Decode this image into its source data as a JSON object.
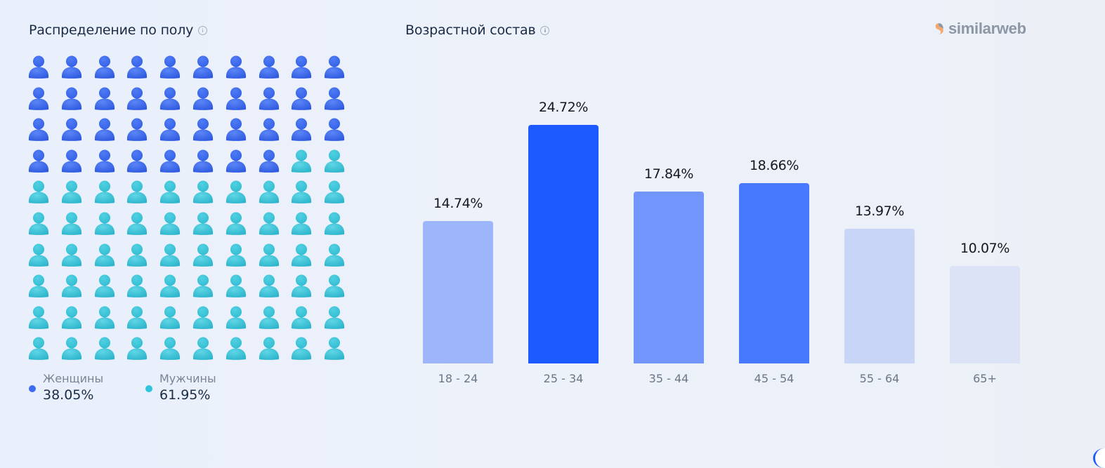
{
  "gender": {
    "title": "Распределение по полу",
    "info_icon": "info-icon",
    "women": {
      "label": "Женщины",
      "value": "38.05%",
      "icon_count": 38,
      "color": "#3d6cf0"
    },
    "men": {
      "label": "Мужчины",
      "value": "61.95%",
      "icon_count": 62,
      "color": "#2ec5dc"
    },
    "grid": {
      "rows": 10,
      "cols": 10
    }
  },
  "age": {
    "title": "Возрастной состав",
    "info_icon": "info-icon"
  },
  "brand": {
    "name": "similarweb",
    "mark_color": "#f2a870",
    "text_color": "#8d96a4"
  },
  "chart_data": [
    {
      "type": "pictogram",
      "title": "Распределение по полу",
      "categories": [
        "Женщины",
        "Мужчины"
      ],
      "values": [
        38.05,
        61.95
      ],
      "unit": "%",
      "colors": [
        "#3d6cf0",
        "#2ec5dc"
      ],
      "icons_total": 100,
      "legend_position": "bottom"
    },
    {
      "type": "bar",
      "title": "Возрастной состав",
      "categories": [
        "18 - 24",
        "25 - 34",
        "35 - 44",
        "45 - 54",
        "55 - 64",
        "65+"
      ],
      "values": [
        14.74,
        24.72,
        17.84,
        18.66,
        13.97,
        10.07
      ],
      "labels": [
        "14.74%",
        "24.72%",
        "17.84%",
        "18.66%",
        "13.97%",
        "10.07%"
      ],
      "colors": [
        "#9cb5fb",
        "#1c5aff",
        "#7295fb",
        "#4679fd",
        "#c9d5f7",
        "#dde3f6"
      ],
      "xlabel": "",
      "ylabel": "",
      "ylim": [
        0,
        25
      ],
      "grid": false
    }
  ]
}
